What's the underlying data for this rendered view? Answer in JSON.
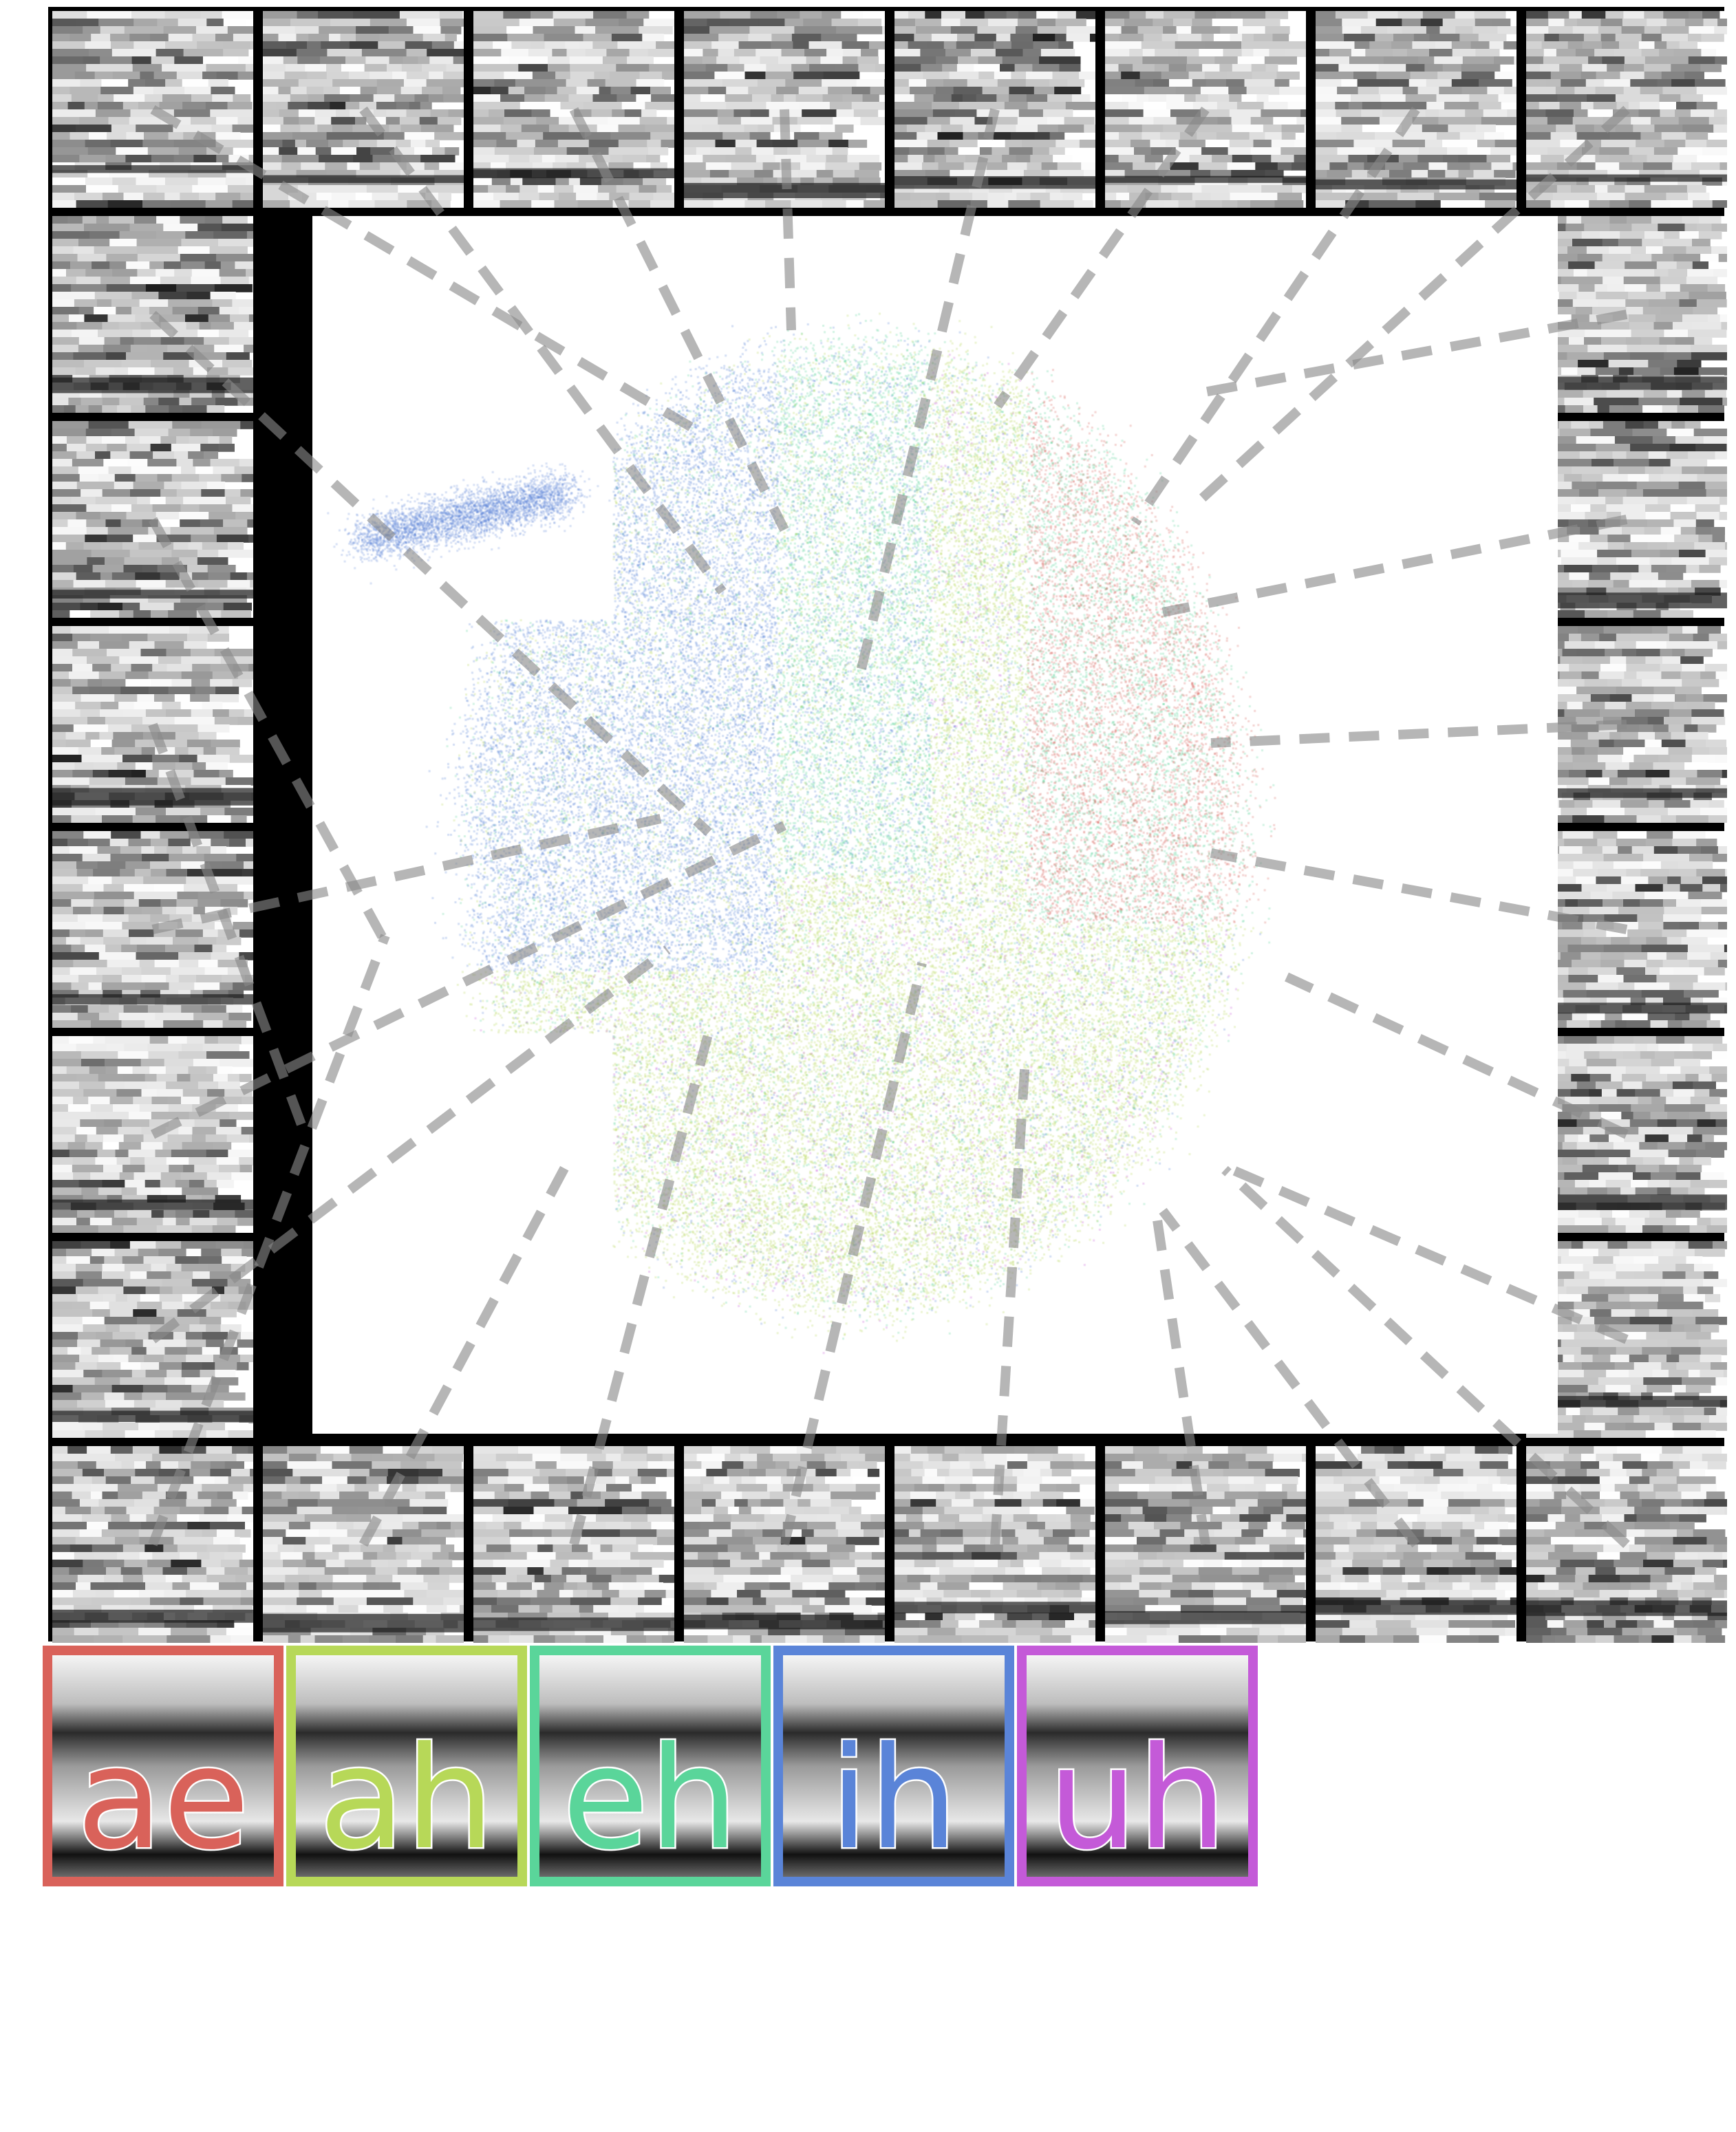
{
  "legend": {
    "items": [
      {
        "label": "ae",
        "color": "#d9625a"
      },
      {
        "label": "ah",
        "color": "#b7d858"
      },
      {
        "label": "eh",
        "color": "#5ad59a"
      },
      {
        "label": "ih",
        "color": "#5a84d8"
      },
      {
        "label": "uh",
        "color": "#c45ad8"
      }
    ]
  },
  "colors": {
    "frame": "#000000",
    "connector_line": "#8a8a8a"
  }
}
